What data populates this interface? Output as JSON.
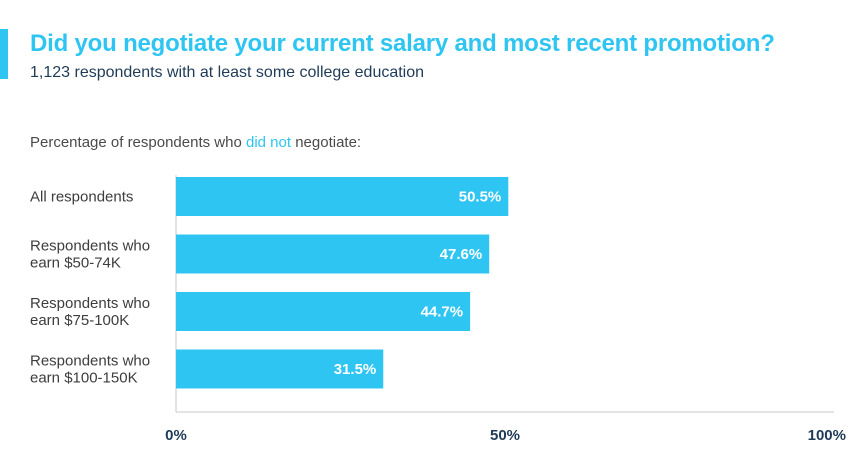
{
  "header": {
    "title": "Did you negotiate your current salary and most recent promotion?",
    "subtitle": "1,123 respondents with at least some college education"
  },
  "question": {
    "prefix": "Percentage of respondents who ",
    "highlight": "did not",
    "suffix": " negotiate:"
  },
  "colors": {
    "accent": "#2ec5f2",
    "bar": "#2ec5f2",
    "subtitle": "#1f3b57",
    "axis_line": "#c8c8c8"
  },
  "chart_data": {
    "type": "bar",
    "orientation": "horizontal",
    "categories": [
      [
        "All respondents"
      ],
      [
        "Respondents who",
        "earn $50-74K"
      ],
      [
        "Respondents who",
        "earn $75-100K"
      ],
      [
        "Respondents who",
        "earn $100-150K"
      ]
    ],
    "values": [
      50.5,
      47.6,
      44.7,
      31.5
    ],
    "value_labels": [
      "50.5%",
      "47.6%",
      "44.7%",
      "31.5%"
    ],
    "xlim": [
      0,
      100
    ],
    "x_ticks": [
      0,
      50,
      100
    ],
    "x_tick_labels": [
      "0%",
      "50%",
      "100%"
    ],
    "grid": false,
    "legend": "none"
  }
}
